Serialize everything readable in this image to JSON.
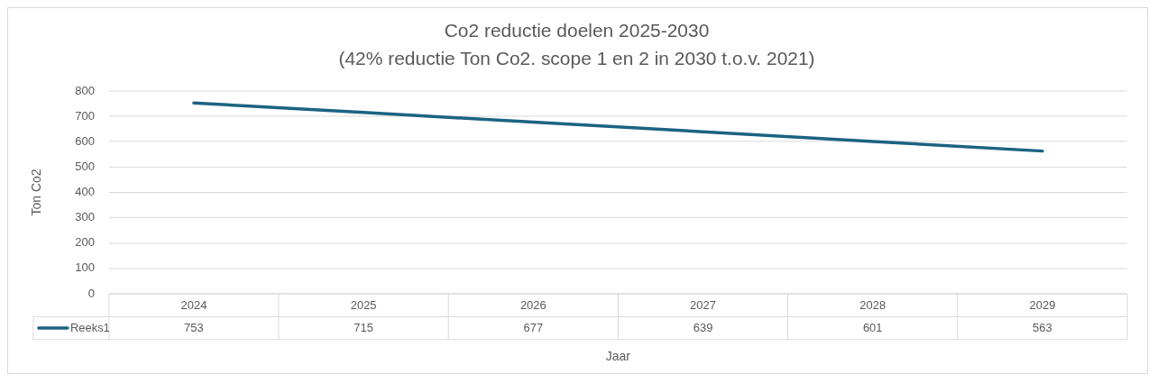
{
  "chart_data": {
    "type": "line",
    "title": "Co2 reductie doelen 2025-2030",
    "subtitle": "(42% reductie Ton Co2. scope 1 en 2 in 2030 t.o.v. 2021)",
    "xlabel": "Jaar",
    "ylabel": "Ton Co2",
    "categories": [
      "2024",
      "2025",
      "2026",
      "2027",
      "2028",
      "2029"
    ],
    "series": [
      {
        "name": "Reeks1",
        "color": "#1b6382",
        "values": [
          753,
          715,
          677,
          639,
          601,
          563
        ]
      }
    ],
    "ylim": [
      0,
      800
    ],
    "yticks": [
      0,
      100,
      200,
      300,
      400,
      500,
      600,
      700,
      800
    ],
    "grid": "y",
    "legend": "bottom",
    "data_labels": true,
    "marker": "none"
  }
}
